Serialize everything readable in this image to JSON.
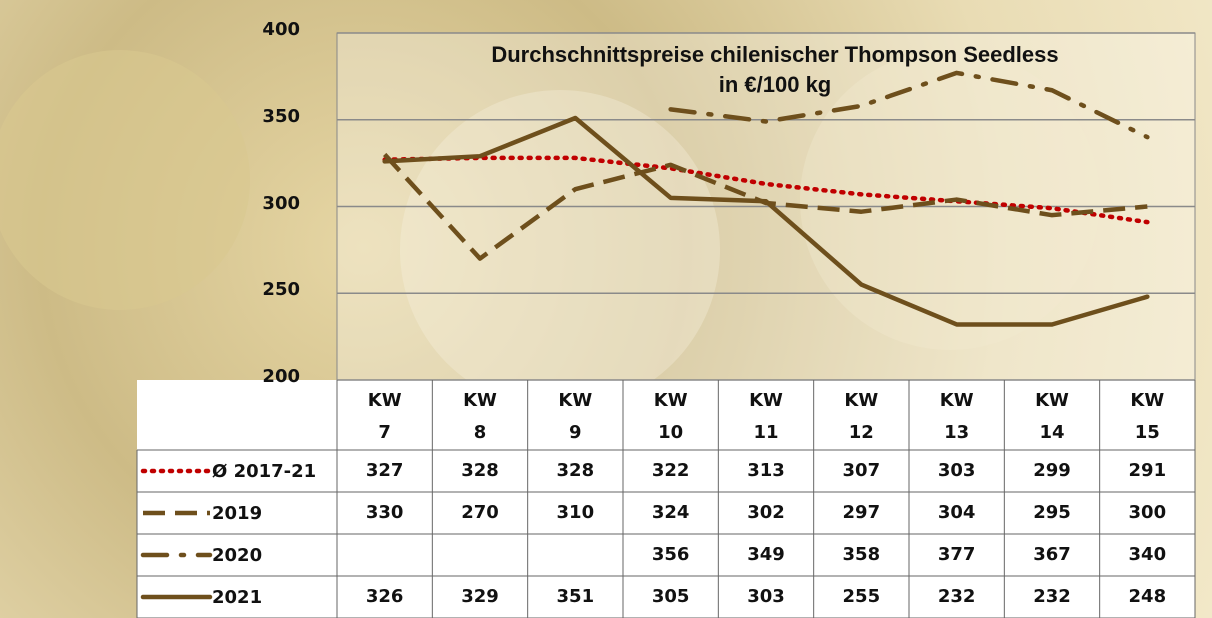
{
  "chart_data": {
    "type": "line",
    "title": "Durchschnittspreise chilenischer Thompson Seedless\nin €/100 kg",
    "categories": [
      "KW\n7",
      "KW\n8",
      "KW\n9",
      "KW\n10",
      "KW\n11",
      "KW\n12",
      "KW\n13",
      "KW\n14",
      "KW\n15"
    ],
    "series": [
      {
        "name": "Ø 2017-21",
        "color": "#c00000",
        "style": "dotted",
        "values": [
          327,
          328,
          328,
          322,
          313,
          307,
          303,
          299,
          291
        ]
      },
      {
        "name": "2019",
        "color": "#6e4f1c",
        "style": "dashed",
        "values": [
          330,
          270,
          310,
          324,
          302,
          297,
          304,
          295,
          300
        ]
      },
      {
        "name": "2020",
        "color": "#6e4f1c",
        "style": "dashdot",
        "values": [
          null,
          null,
          null,
          356,
          349,
          358,
          377,
          367,
          340
        ]
      },
      {
        "name": "2021",
        "color": "#6e4f1c",
        "style": "solid",
        "values": [
          326,
          329,
          351,
          305,
          303,
          255,
          232,
          232,
          248
        ]
      }
    ],
    "ylim": [
      200,
      400
    ],
    "yticks": [
      200,
      250,
      300,
      350,
      400
    ],
    "grid": true
  }
}
